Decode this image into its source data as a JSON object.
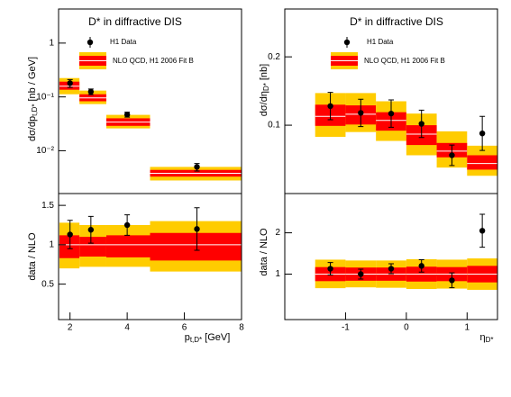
{
  "chart_data": [
    {
      "type": "band",
      "title": "D* in diffractive DIS",
      "y_label": "dσ/dp",
      "y_label_sub": "t,D*",
      "y_label_unit": "[nb / GeV]",
      "log_y": true,
      "xlim": [
        1.6,
        8
      ],
      "ylim": [
        0.0016,
        4.3
      ],
      "yticks": [
        1,
        {
          "value": 0.1,
          "label": "10⁻¹"
        },
        {
          "value": 0.01,
          "label": "10⁻²"
        }
      ],
      "bins": [
        1.63,
        2.33,
        3.27,
        4.8,
        8
      ],
      "nlo": {
        "name": "NLO QCD, H1 2006 Fit B",
        "color": "#ff0000",
        "outer_color": "#ffcc00",
        "values": [
          0.158,
          0.096,
          0.034,
          0.0038
        ],
        "inner_low": [
          0.136,
          0.083,
          0.029,
          0.0033
        ],
        "inner_high": [
          0.192,
          0.112,
          0.04,
          0.0044
        ],
        "outer_low": [
          0.112,
          0.0736,
          0.026,
          0.0028
        ],
        "outer_high": [
          0.224,
          0.131,
          0.0464,
          0.005
        ]
      },
      "data": {
        "name": "H1 Data",
        "color": "#000000",
        "x": [
          2,
          2.73,
          4,
          6.44
        ],
        "values": [
          0.18,
          0.125,
          0.047,
          0.005
        ],
        "errors": [
          0.03,
          0.015,
          0.005,
          0.0008
        ]
      }
    },
    {
      "type": "band",
      "y_label": "data / NLO",
      "x_label": "p",
      "x_label_sub": "t,D*",
      "x_label_unit": "[GeV]",
      "xlim": [
        1.6,
        8
      ],
      "ylim": [
        0.05,
        1.65
      ],
      "yticks": [
        0.5,
        1,
        1.5
      ],
      "xticks": [
        2,
        4,
        6,
        8
      ],
      "bins": [
        1.63,
        2.33,
        3.27,
        4.8,
        8
      ],
      "nlo": {
        "color": "#ff0000",
        "outer_color": "#ffcc00",
        "values": [
          1,
          1,
          1,
          1
        ],
        "inner_low": [
          0.83,
          0.85,
          0.84,
          0.8
        ],
        "inner_high": [
          1.12,
          1.1,
          1.12,
          1.15
        ],
        "outer_low": [
          0.7,
          0.72,
          0.72,
          0.66
        ],
        "outer_high": [
          1.28,
          1.25,
          1.25,
          1.3
        ]
      },
      "data": {
        "color": "#000000",
        "x": [
          2,
          2.73,
          4,
          6.44
        ],
        "values": [
          1.13,
          1.19,
          1.25,
          1.2
        ],
        "errors": [
          0.18,
          0.17,
          0.13,
          0.27
        ]
      }
    },
    {
      "type": "band",
      "title": "D* in diffractive DIS",
      "y_label": "dσ/dη",
      "y_label_sub": "D*",
      "y_label_unit": "[nb]",
      "xlim": [
        -2,
        1.5
      ],
      "ylim": [
        0,
        0.27
      ],
      "yticks": [
        0.1,
        0.2
      ],
      "bins": [
        -1.5,
        -1,
        -0.5,
        0,
        0.5,
        1,
        1.5
      ],
      "nlo": {
        "name": "NLO QCD, H1 2006 Fit B",
        "color": "#ff0000",
        "outer_color": "#ffcc00",
        "values": [
          0.113,
          0.116,
          0.107,
          0.087,
          0.062,
          0.044
        ],
        "inner_low": [
          0.099,
          0.101,
          0.092,
          0.071,
          0.053,
          0.035
        ],
        "inner_high": [
          0.13,
          0.129,
          0.119,
          0.1,
          0.074,
          0.056
        ],
        "outer_low": [
          0.083,
          0.09,
          0.077,
          0.056,
          0.038,
          0.026
        ],
        "outer_high": [
          0.147,
          0.147,
          0.135,
          0.117,
          0.091,
          0.07
        ]
      },
      "data": {
        "name": "H1 Data",
        "color": "#000000",
        "x": [
          -1.25,
          -0.75,
          -0.25,
          0.25,
          0.75,
          1.25
        ],
        "values": [
          0.128,
          0.118,
          0.117,
          0.102,
          0.056,
          0.088
        ],
        "errors": [
          0.02,
          0.02,
          0.02,
          0.02,
          0.015,
          0.025
        ]
      }
    },
    {
      "type": "band",
      "y_label": "data / NLO",
      "x_label": "η",
      "x_label_sub": "D*",
      "xlim": [
        -2,
        1.5
      ],
      "ylim": [
        -0.1,
        2.95
      ],
      "yticks": [
        1,
        2
      ],
      "xticks": [
        -1,
        0,
        1
      ],
      "bins": [
        -1.5,
        -1,
        -0.5,
        0,
        0.5,
        1,
        1.5
      ],
      "nlo": {
        "color": "#ff0000",
        "outer_color": "#ffcc00",
        "values": [
          1,
          1,
          1,
          1,
          1,
          1
        ],
        "inner_low": [
          0.83,
          0.84,
          0.84,
          0.82,
          0.83,
          0.8
        ],
        "inner_high": [
          1.17,
          1.16,
          1.16,
          1.18,
          1.17,
          1.2
        ],
        "outer_low": [
          0.66,
          0.68,
          0.67,
          0.64,
          0.65,
          0.62
        ],
        "outer_high": [
          1.35,
          1.33,
          1.33,
          1.36,
          1.35,
          1.38
        ]
      },
      "data": {
        "color": "#000000",
        "x": [
          -1.25,
          -0.75,
          -0.25,
          0.25,
          0.75,
          1.25
        ],
        "values": [
          1.13,
          1.0,
          1.13,
          1.2,
          0.85,
          2.05
        ],
        "errors": [
          0.15,
          0.12,
          0.12,
          0.15,
          0.18,
          0.4
        ]
      }
    }
  ]
}
